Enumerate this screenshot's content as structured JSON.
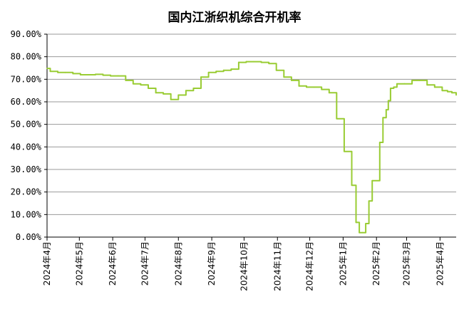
{
  "chart_data": {
    "type": "line",
    "title": "国内江浙织机综合开机率",
    "xlabel": "",
    "ylabel": "",
    "ylim": [
      0,
      90
    ],
    "y_ticks": [
      "0.00%",
      "10.00%",
      "20.00%",
      "30.00%",
      "40.00%",
      "50.00%",
      "60.00%",
      "70.00%",
      "80.00%",
      "90.00%"
    ],
    "x_ticks": [
      "2024年4月",
      "2024年5月",
      "2024年6月",
      "2024年7月",
      "2024年8月",
      "2024年9月",
      "2024年10月",
      "2024年11月",
      "2024年12月",
      "2025年1月",
      "2025年2月",
      "2025年3月",
      "2025年4月"
    ],
    "grid": true,
    "line_color": "#99cc33",
    "series": [
      {
        "x": [
          "2024-04-01",
          "2024-04-04",
          "2024-04-11",
          "2024-04-18",
          "2024-04-25",
          "2024-05-02",
          "2024-05-09",
          "2024-05-16",
          "2024-05-23",
          "2024-05-30",
          "2024-06-06",
          "2024-06-13",
          "2024-06-20",
          "2024-06-27",
          "2024-07-04",
          "2024-07-11",
          "2024-07-18",
          "2024-07-25",
          "2024-08-01",
          "2024-08-08",
          "2024-08-15",
          "2024-08-22",
          "2024-08-29",
          "2024-09-05",
          "2024-09-12",
          "2024-09-19",
          "2024-09-26",
          "2024-10-03",
          "2024-10-10",
          "2024-10-17",
          "2024-10-24",
          "2024-10-31",
          "2024-11-07",
          "2024-11-14",
          "2024-11-21",
          "2024-11-28",
          "2024-12-05",
          "2024-12-12",
          "2024-12-19",
          "2024-12-26",
          "2025-01-02",
          "2025-01-09",
          "2025-01-13",
          "2025-01-16",
          "2025-01-19",
          "2025-01-22",
          "2025-01-25",
          "2025-01-28",
          "2025-02-04",
          "2025-02-07",
          "2025-02-10",
          "2025-02-12",
          "2025-02-14",
          "2025-02-17",
          "2025-02-20",
          "2025-02-27",
          "2025-03-06",
          "2025-03-13",
          "2025-03-20",
          "2025-03-27",
          "2025-04-03",
          "2025-04-08",
          "2025-04-12",
          "2025-04-16"
        ],
        "values": [
          74.8,
          73.5,
          73.0,
          73.0,
          72.5,
          72.0,
          72.0,
          72.2,
          71.8,
          71.5,
          71.5,
          69.5,
          68.0,
          67.5,
          66.0,
          64.0,
          63.5,
          61.0,
          63.0,
          65.0,
          66.0,
          71.0,
          73.0,
          73.5,
          74.0,
          74.5,
          77.5,
          77.8,
          77.8,
          77.5,
          77.0,
          74.0,
          71.0,
          69.5,
          67.0,
          66.5,
          66.5,
          65.5,
          64.0,
          52.5,
          38.0,
          23.0,
          6.5,
          2.0,
          2.0,
          6.0,
          16.0,
          25.0,
          42.0,
          53.0,
          56.5,
          60.5,
          66.0,
          66.5,
          68.0,
          68.0,
          69.5,
          69.5,
          67.5,
          66.5,
          65.0,
          64.5,
          64.0,
          63.0
        ]
      }
    ]
  }
}
